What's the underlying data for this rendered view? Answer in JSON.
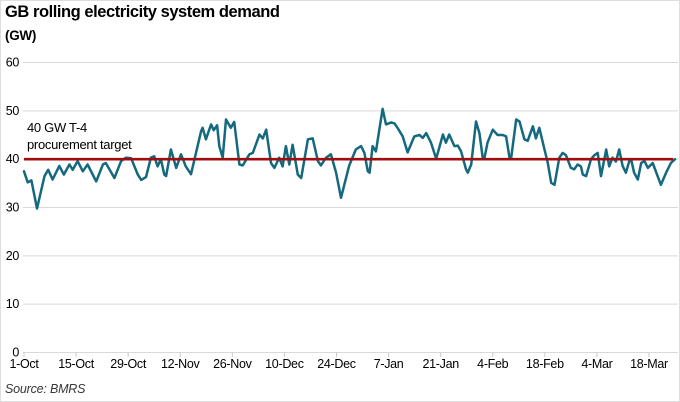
{
  "header": {
    "title": "GB rolling electricity system demand",
    "units_label": "(GW)"
  },
  "annotation": {
    "line1": "40 GW T-4",
    "line2": "procurement target"
  },
  "footer": {
    "source": "Source: BMRS"
  },
  "colors": {
    "series": "#15697e",
    "target_line": "#9e0e0e",
    "grid": "#d9d9d9",
    "tick": "#c9c9c9",
    "text": "#000000"
  },
  "chart_data": {
    "type": "line",
    "title": "GB rolling electricity system demand",
    "ylabel": "(GW)",
    "ylim": [
      0,
      60
    ],
    "y_ticks": [
      0,
      10,
      20,
      30,
      40,
      50,
      60
    ],
    "grid": "horizontal",
    "legend": "none",
    "x_ticks": [
      {
        "label": "1-Oct",
        "day": 0
      },
      {
        "label": "15-Oct",
        "day": 14
      },
      {
        "label": "29-Oct",
        "day": 28
      },
      {
        "label": "12-Nov",
        "day": 42
      },
      {
        "label": "26-Nov",
        "day": 56
      },
      {
        "label": "10-Dec",
        "day": 70
      },
      {
        "label": "24-Dec",
        "day": 84
      },
      {
        "label": "7-Jan",
        "day": 98
      },
      {
        "label": "21-Jan",
        "day": 112
      },
      {
        "label": "4-Feb",
        "day": 126
      },
      {
        "label": "18-Feb",
        "day": 140
      },
      {
        "label": "4-Mar",
        "day": 154
      },
      {
        "label": "18-Mar",
        "day": 168
      }
    ],
    "target_line": {
      "value": 40,
      "label": "40 GW T-4 procurement target",
      "day_start": 0,
      "day_end": 174.5
    },
    "series": [
      {
        "name": "GB rolling electricity system demand (GW)",
        "points": [
          [
            0,
            37.5
          ],
          [
            1,
            35.2
          ],
          [
            2,
            35.6
          ],
          [
            3.5,
            29.8
          ],
          [
            5.5,
            36.5
          ],
          [
            6.5,
            37.8
          ],
          [
            7.7,
            35.8
          ],
          [
            9.5,
            38.6
          ],
          [
            10.7,
            36.8
          ],
          [
            12.2,
            38.9
          ],
          [
            13.1,
            37.8
          ],
          [
            14.4,
            39.6
          ],
          [
            15.8,
            37.5
          ],
          [
            17.1,
            38.9
          ],
          [
            19.4,
            35.4
          ],
          [
            21.2,
            38.9
          ],
          [
            22,
            39.2
          ],
          [
            24.3,
            36.1
          ],
          [
            26.1,
            39.6
          ],
          [
            27.4,
            40.3
          ],
          [
            28.8,
            40.2
          ],
          [
            30.6,
            36.8
          ],
          [
            31.5,
            35.7
          ],
          [
            32.8,
            36.3
          ],
          [
            34.1,
            40.3
          ],
          [
            35,
            40.6
          ],
          [
            35.9,
            38.5
          ],
          [
            36.8,
            40.0
          ],
          [
            37.7,
            36.8
          ],
          [
            38.2,
            36.5
          ],
          [
            39.5,
            42.0
          ],
          [
            40.9,
            38.2
          ],
          [
            42.2,
            41.0
          ],
          [
            43.5,
            38.5
          ],
          [
            44.9,
            36.9
          ],
          [
            47.6,
            45.8
          ],
          [
            48,
            46.5
          ],
          [
            48.9,
            44.1
          ],
          [
            50.3,
            47.2
          ],
          [
            51,
            46.0
          ],
          [
            51.9,
            47.0
          ],
          [
            52.5,
            42.7
          ],
          [
            53.4,
            40.3
          ],
          [
            54.3,
            48.2
          ],
          [
            55.6,
            46.5
          ],
          [
            56.5,
            47.7
          ],
          [
            57.9,
            38.9
          ],
          [
            58.8,
            38.7
          ],
          [
            60.6,
            41.0
          ],
          [
            61.5,
            41.3
          ],
          [
            63.3,
            45.1
          ],
          [
            64.2,
            44.3
          ],
          [
            65.1,
            46.1
          ],
          [
            66.4,
            39.2
          ],
          [
            67.3,
            38.2
          ],
          [
            68.6,
            40.3
          ],
          [
            69.5,
            38.5
          ],
          [
            70.4,
            42.7
          ],
          [
            71.3,
            38.9
          ],
          [
            72.2,
            43.0
          ],
          [
            73.6,
            36.8
          ],
          [
            74.5,
            36.1
          ],
          [
            76.3,
            44.1
          ],
          [
            77.6,
            44.3
          ],
          [
            79,
            39.6
          ],
          [
            79.8,
            38.7
          ],
          [
            81.2,
            40.3
          ],
          [
            82.5,
            41.0
          ],
          [
            83.9,
            37.2
          ],
          [
            85.2,
            32.0
          ],
          [
            87.4,
            38.6
          ],
          [
            89.2,
            42.0
          ],
          [
            90.6,
            42.7
          ],
          [
            91.5,
            41.3
          ],
          [
            92.4,
            37.5
          ],
          [
            92.9,
            37.2
          ],
          [
            93.7,
            42.7
          ],
          [
            94.6,
            41.6
          ],
          [
            96.4,
            50.4
          ],
          [
            97.3,
            47.2
          ],
          [
            98.7,
            47.6
          ],
          [
            99.6,
            47.4
          ],
          [
            100.4,
            46.5
          ],
          [
            101.8,
            44.7
          ],
          [
            103.1,
            41.4
          ],
          [
            104.9,
            44.7
          ],
          [
            106.3,
            45.0
          ],
          [
            107.2,
            44.4
          ],
          [
            108.1,
            45.4
          ],
          [
            109.4,
            43.4
          ],
          [
            110.8,
            40.1
          ],
          [
            112.6,
            45.1
          ],
          [
            113.4,
            43.4
          ],
          [
            114.3,
            45.1
          ],
          [
            115.7,
            42.7
          ],
          [
            116.6,
            42.8
          ],
          [
            117.5,
            41.6
          ],
          [
            118.8,
            37.9
          ],
          [
            119.3,
            37.2
          ],
          [
            120.2,
            38.9
          ],
          [
            121.5,
            47.8
          ],
          [
            122.4,
            45.4
          ],
          [
            123.3,
            40.3
          ],
          [
            123.7,
            40.0
          ],
          [
            124.6,
            43.4
          ],
          [
            126,
            46.1
          ],
          [
            127.3,
            45.0
          ],
          [
            128.7,
            45.0
          ],
          [
            129.6,
            44.7
          ],
          [
            130.5,
            40.3
          ],
          [
            130.9,
            40.0
          ],
          [
            132.3,
            48.2
          ],
          [
            133.2,
            47.8
          ],
          [
            134.5,
            44.1
          ],
          [
            135.4,
            43.8
          ],
          [
            136.8,
            46.8
          ],
          [
            137.6,
            44.3
          ],
          [
            138.5,
            46.5
          ],
          [
            139.9,
            42.0
          ],
          [
            140.8,
            39.2
          ],
          [
            141.7,
            35.1
          ],
          [
            142.6,
            34.7
          ],
          [
            143.9,
            40.3
          ],
          [
            144.8,
            41.3
          ],
          [
            145.7,
            40.8
          ],
          [
            147,
            38.2
          ],
          [
            147.9,
            37.9
          ],
          [
            148.8,
            38.9
          ],
          [
            149.7,
            38.5
          ],
          [
            150.2,
            36.8
          ],
          [
            151.1,
            36.5
          ],
          [
            152.4,
            40.0
          ],
          [
            153.3,
            40.8
          ],
          [
            154.2,
            41.3
          ],
          [
            155.1,
            36.5
          ],
          [
            156.5,
            42.0
          ],
          [
            157.3,
            38.5
          ],
          [
            158.2,
            40.3
          ],
          [
            159.1,
            39.5
          ],
          [
            160,
            42.0
          ],
          [
            160.9,
            38.6
          ],
          [
            161.8,
            37.2
          ],
          [
            162.7,
            39.6
          ],
          [
            163.2,
            40.0
          ],
          [
            164,
            37.2
          ],
          [
            165,
            35.8
          ],
          [
            165.9,
            39.2
          ],
          [
            166.8,
            39.6
          ],
          [
            167.7,
            38.2
          ],
          [
            169,
            39.2
          ],
          [
            170.3,
            36.5
          ],
          [
            171.2,
            34.7
          ],
          [
            172.6,
            37.2
          ],
          [
            173.9,
            39.2
          ],
          [
            175,
            40.0
          ]
        ]
      }
    ]
  }
}
